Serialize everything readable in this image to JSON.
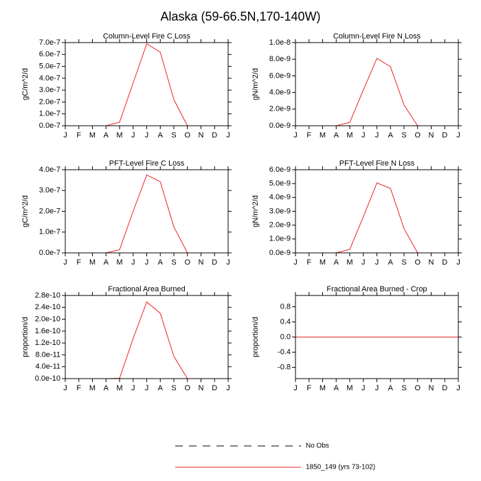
{
  "title": "Alaska (59-66.5N,170-140W)",
  "legend": [
    {
      "name": "No Obs",
      "color": "#000000",
      "dash": true
    },
    {
      "name": "1850_149 (yrs 73-102)",
      "color": "#e8201e"
    }
  ],
  "chart_data": [
    {
      "type": "line",
      "title": "Column-Level Fire C Loss",
      "ylabel": "gC/m^2/d",
      "categories": [
        "J",
        "F",
        "M",
        "A",
        "M",
        "J",
        "J",
        "A",
        "S",
        "O",
        "N",
        "D",
        "J"
      ],
      "series": [
        {
          "color": "#e8201e",
          "values": [
            0,
            0,
            0,
            0,
            3e-08,
            3.6e-07,
            6.9e-07,
            6.2e-07,
            2.2e-07,
            0,
            0,
            0,
            0
          ]
        }
      ],
      "ylim": [
        0,
        7e-07
      ],
      "yticks": [
        {
          "value": 0,
          "label": "0.0e-7"
        },
        {
          "value": 1e-07,
          "label": "1.0e-7"
        },
        {
          "value": 2e-07,
          "label": "2.0e-7"
        },
        {
          "value": 3e-07,
          "label": "3.0e-7"
        },
        {
          "value": 4e-07,
          "label": "4.0e-7"
        },
        {
          "value": 5e-07,
          "label": "5.0e-7"
        },
        {
          "value": 6e-07,
          "label": "6.0e-7"
        },
        {
          "value": 7e-07,
          "label": "7.0e-7"
        }
      ]
    },
    {
      "type": "line",
      "title": "Column-Level Fire N Loss",
      "ylabel": "gN/m^2/d",
      "categories": [
        "J",
        "F",
        "M",
        "A",
        "M",
        "J",
        "J",
        "A",
        "S",
        "O",
        "N",
        "D",
        "J"
      ],
      "series": [
        {
          "color": "#e8201e",
          "values": [
            0,
            0,
            0,
            0,
            4e-10,
            4.3e-09,
            8.1e-09,
            7.1e-09,
            2.5e-09,
            0,
            0,
            0,
            0
          ]
        }
      ],
      "ylim": [
        0,
        1e-08
      ],
      "yticks": [
        {
          "value": 0,
          "label": "0.0e-9"
        },
        {
          "value": 2e-09,
          "label": "2.0e-9"
        },
        {
          "value": 4e-09,
          "label": "4.0e-9"
        },
        {
          "value": 6e-09,
          "label": "6.0e-9"
        },
        {
          "value": 8e-09,
          "label": "8.0e-9"
        },
        {
          "value": 1e-08,
          "label": "1.0e-8"
        }
      ]
    },
    {
      "type": "line",
      "title": "PFT-Level Fire C Loss",
      "ylabel": "gC/m^2/d",
      "categories": [
        "J",
        "F",
        "M",
        "A",
        "M",
        "J",
        "J",
        "A",
        "S",
        "O",
        "N",
        "D",
        "J"
      ],
      "series": [
        {
          "color": "#e8201e",
          "values": [
            0,
            0,
            0,
            0,
            1.5e-08,
            2e-07,
            3.75e-07,
            3.42e-07,
            1.25e-07,
            0,
            0,
            0,
            0
          ]
        }
      ],
      "ylim": [
        0,
        4e-07
      ],
      "yticks": [
        {
          "value": 0,
          "label": "0.0e-7"
        },
        {
          "value": 1e-07,
          "label": "1.0e-7"
        },
        {
          "value": 2e-07,
          "label": "2.0e-7"
        },
        {
          "value": 3e-07,
          "label": "3.0e-7"
        },
        {
          "value": 4e-07,
          "label": "4.0e-7"
        }
      ]
    },
    {
      "type": "line",
      "title": "PFT-Level Fire N Loss",
      "ylabel": "gN/m^2/d",
      "categories": [
        "J",
        "F",
        "M",
        "A",
        "M",
        "J",
        "J",
        "A",
        "S",
        "O",
        "N",
        "D",
        "J"
      ],
      "series": [
        {
          "color": "#e8201e",
          "values": [
            0,
            0,
            0,
            0,
            2.5e-10,
            2.6e-09,
            5.05e-09,
            4.65e-09,
            1.75e-09,
            0,
            0,
            0,
            0
          ]
        }
      ],
      "ylim": [
        0,
        6e-09
      ],
      "yticks": [
        {
          "value": 0,
          "label": "0.0e-9"
        },
        {
          "value": 1e-09,
          "label": "1.0e-9"
        },
        {
          "value": 2e-09,
          "label": "2.0e-9"
        },
        {
          "value": 3e-09,
          "label": "3.0e-9"
        },
        {
          "value": 4e-09,
          "label": "4.0e-9"
        },
        {
          "value": 5e-09,
          "label": "5.0e-9"
        },
        {
          "value": 6e-09,
          "label": "6.0e-9"
        }
      ]
    },
    {
      "type": "line",
      "title": "Fractional Area Burned",
      "ylabel": "proportion/d",
      "categories": [
        "J",
        "F",
        "M",
        "A",
        "M",
        "J",
        "J",
        "A",
        "S",
        "O",
        "N",
        "D",
        "J"
      ],
      "series": [
        {
          "color": "#e8201e",
          "values": [
            0,
            0,
            0,
            0,
            1.2e-12,
            1.35e-10,
            2.58e-10,
            2.2e-10,
            7.5e-11,
            0,
            0,
            0,
            0
          ]
        }
      ],
      "ylim": [
        0,
        2.8e-10
      ],
      "yticks": [
        {
          "value": 0,
          "label": "0.0e-10"
        },
        {
          "value": 4e-11,
          "label": "4.0e-11"
        },
        {
          "value": 8e-11,
          "label": "8.0e-11"
        },
        {
          "value": 1.2e-10,
          "label": "1.2e-10"
        },
        {
          "value": 1.6e-10,
          "label": "1.6e-10"
        },
        {
          "value": 2e-10,
          "label": "2.0e-10"
        },
        {
          "value": 2.4e-10,
          "label": "2.4e-10"
        },
        {
          "value": 2.8e-10,
          "label": "2.8e-10"
        }
      ]
    },
    {
      "type": "line",
      "title": "Fractional Area Burned - Crop",
      "ylabel": "proportion/d",
      "categories": [
        "J",
        "F",
        "M",
        "A",
        "M",
        "J",
        "J",
        "A",
        "S",
        "O",
        "N",
        "D",
        "J"
      ],
      "series": [
        {
          "color": "#e8201e",
          "values": [
            0,
            0,
            0,
            0,
            0,
            0,
            0,
            0,
            0,
            0,
            0,
            0,
            0
          ]
        }
      ],
      "ylim": [
        -1.1,
        1.1
      ],
      "yticks": [
        -0.8,
        -0.4,
        {
          "value": 0,
          "label": "0.0"
        },
        0.4,
        0.8
      ]
    }
  ]
}
